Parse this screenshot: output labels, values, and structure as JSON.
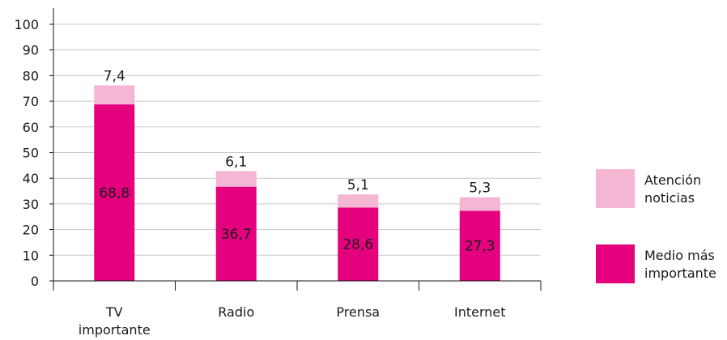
{
  "chart_data": {
    "type": "bar",
    "stacked": true,
    "categories": [
      "TV importante",
      "Radio",
      "Prensa",
      "Internet"
    ],
    "series": [
      {
        "name": "Medio más importante",
        "color": "#e5007e",
        "values": [
          68.8,
          36.7,
          28.6,
          27.3
        ]
      },
      {
        "name": "Atención noticias",
        "color": "#f4b6d2",
        "values": [
          7.4,
          6.1,
          5.1,
          5.3
        ]
      }
    ],
    "data_labels": {
      "bottom": [
        "68,8",
        "36,7",
        "28,6",
        "27,3"
      ],
      "top": [
        "7,4",
        "6,1",
        "5,1",
        "5,3"
      ]
    },
    "category_labels": [
      [
        "TV",
        "importante"
      ],
      [
        "Radio"
      ],
      [
        "Prensa"
      ],
      [
        "Internet"
      ]
    ],
    "legend": [
      {
        "lines": [
          "Atención",
          "noticias"
        ],
        "color": "#f4b6d2"
      },
      {
        "lines": [
          "Medio más",
          "importante"
        ],
        "color": "#e5007e"
      }
    ],
    "legend_position": "right",
    "y_ticks": [
      "0",
      "10",
      "20",
      "30",
      "40",
      "50",
      "60",
      "70",
      "80",
      "90",
      "100"
    ],
    "ylim": [
      0,
      100
    ],
    "grid": true,
    "title": "",
    "xlabel": "",
    "ylabel": ""
  }
}
